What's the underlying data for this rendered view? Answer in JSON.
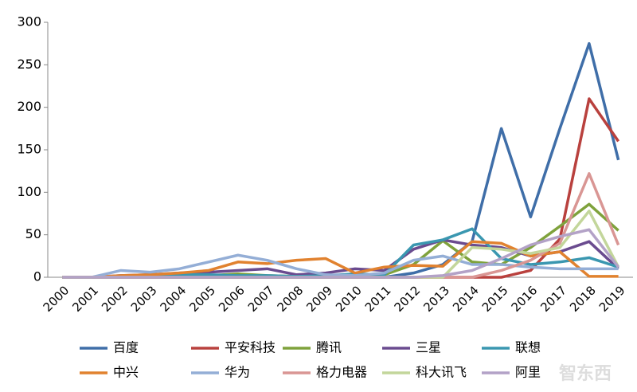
{
  "chart_data": {
    "type": "line",
    "categories": [
      "2000",
      "2001",
      "2002",
      "2003",
      "2004",
      "2005",
      "2006",
      "2007",
      "2008",
      "2009",
      "2010",
      "2011",
      "2012",
      "2013",
      "2014",
      "2015",
      "2016",
      "2017",
      "2018",
      "2019"
    ],
    "series": [
      {
        "name": "百度",
        "color": "#3f6ea8",
        "values": [
          0,
          0,
          0,
          0,
          0,
          0,
          0,
          0,
          0,
          0,
          0,
          0,
          5,
          15,
          42,
          175,
          71,
          175,
          275,
          138
        ]
      },
      {
        "name": "平安科技",
        "color": "#b9413e",
        "values": [
          0,
          0,
          0,
          0,
          0,
          0,
          0,
          0,
          0,
          0,
          0,
          0,
          0,
          0,
          0,
          0,
          8,
          45,
          210,
          160
        ]
      },
      {
        "name": "腾讯",
        "color": "#7fa23c",
        "values": [
          0,
          0,
          1,
          1,
          2,
          2,
          4,
          2,
          1,
          1,
          2,
          3,
          15,
          43,
          18,
          15,
          35,
          60,
          86,
          55
        ]
      },
      {
        "name": "三星",
        "color": "#6a4b8f",
        "values": [
          0,
          0,
          2,
          3,
          5,
          6,
          8,
          10,
          3,
          5,
          10,
          8,
          33,
          44,
          38,
          35,
          25,
          30,
          42,
          10
        ]
      },
      {
        "name": "联想",
        "color": "#3a97b0",
        "values": [
          0,
          0,
          1,
          2,
          3,
          3,
          2,
          2,
          1,
          2,
          4,
          3,
          38,
          44,
          57,
          22,
          15,
          18,
          23,
          12
        ]
      },
      {
        "name": "中兴",
        "color": "#e1822f",
        "values": [
          0,
          0,
          2,
          3,
          5,
          8,
          18,
          16,
          20,
          22,
          5,
          12,
          14,
          13,
          42,
          40,
          25,
          30,
          1,
          1
        ]
      },
      {
        "name": "华为",
        "color": "#94aed6",
        "values": [
          0,
          0,
          8,
          6,
          10,
          18,
          26,
          20,
          10,
          3,
          2,
          5,
          20,
          25,
          15,
          15,
          12,
          10,
          10,
          10
        ]
      },
      {
        "name": "格力电器",
        "color": "#d99694",
        "values": [
          0,
          0,
          0,
          0,
          0,
          0,
          0,
          0,
          0,
          0,
          0,
          0,
          0,
          0,
          0,
          8,
          20,
          40,
          122,
          38
        ]
      },
      {
        "name": "科大讯飞",
        "color": "#c3d69b",
        "values": [
          0,
          0,
          0,
          0,
          0,
          0,
          0,
          0,
          0,
          0,
          0,
          0,
          0,
          0,
          35,
          33,
          28,
          35,
          78,
          12
        ]
      },
      {
        "name": "阿里",
        "color": "#b3a2c7",
        "values": [
          0,
          0,
          0,
          0,
          0,
          0,
          0,
          0,
          0,
          0,
          0,
          0,
          0,
          2,
          8,
          22,
          38,
          48,
          56,
          12
        ]
      }
    ],
    "ylim": [
      0,
      300
    ],
    "yticks": [
      0,
      50,
      100,
      150,
      200,
      250,
      300
    ],
    "grid": false,
    "watermark": "智东西"
  }
}
